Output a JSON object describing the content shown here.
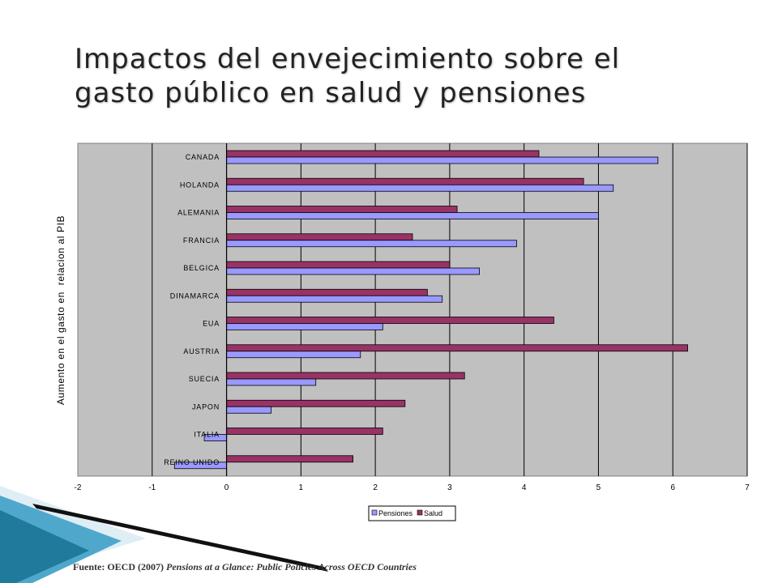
{
  "slide": {
    "title_line1": "Impactos del envejecimiento sobre el",
    "title_line2": "gasto público en salud y pensiones",
    "source_prefix": "Fuente: OECD (2007)",
    "source_title": "Pensions at a Glance: Public Policies Across OECD Countries"
  },
  "colors": {
    "pensiones": "#9999ff",
    "salud": "#993366",
    "plot_bg": "#c0c0c0",
    "accent": "#1f7a9c"
  },
  "chart_data": {
    "type": "bar",
    "orientation": "horizontal",
    "ylabel": "Aumento en el gasto en  relacion al PIB",
    "xlabel": "",
    "xlim": [
      -2,
      7
    ],
    "xticks": [
      "-2",
      "-1",
      "0",
      "1",
      "2",
      "3",
      "4",
      "5",
      "6",
      "7"
    ],
    "grid": true,
    "legend_position": "bottom",
    "categories": [
      "CANADA",
      "HOLANDA",
      "ALEMANIA",
      "FRANCIA",
      "BELGICA",
      "DINAMARCA",
      "EUA",
      "AUSTRIA",
      "SUECIA",
      "JAPON",
      "ITALIA",
      "REINO UNIDO"
    ],
    "series": [
      {
        "name": "Pensiones",
        "values": [
          5.8,
          5.2,
          5.0,
          3.9,
          3.4,
          2.9,
          2.1,
          1.8,
          1.2,
          0.6,
          -0.3,
          -0.7
        ]
      },
      {
        "name": "Salud",
        "values": [
          4.2,
          4.8,
          3.1,
          2.5,
          3.0,
          2.7,
          4.4,
          6.2,
          3.2,
          2.4,
          2.1,
          1.7
        ]
      }
    ]
  }
}
